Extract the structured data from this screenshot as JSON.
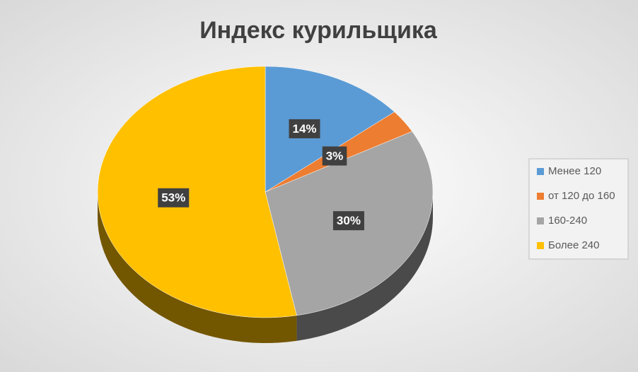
{
  "chart_data": {
    "type": "pie",
    "title": "Индекс курильщика",
    "categories": [
      "Менее 120",
      "от 120 до 160",
      "160-240",
      "Более 240"
    ],
    "values": [
      14,
      3,
      30,
      53
    ],
    "value_labels": [
      "14%",
      "3%",
      "30%",
      "53%"
    ],
    "colors": [
      "#5b9bd5",
      "#ed7d31",
      "#a5a5a5",
      "#ffc000"
    ],
    "legend": "right"
  }
}
